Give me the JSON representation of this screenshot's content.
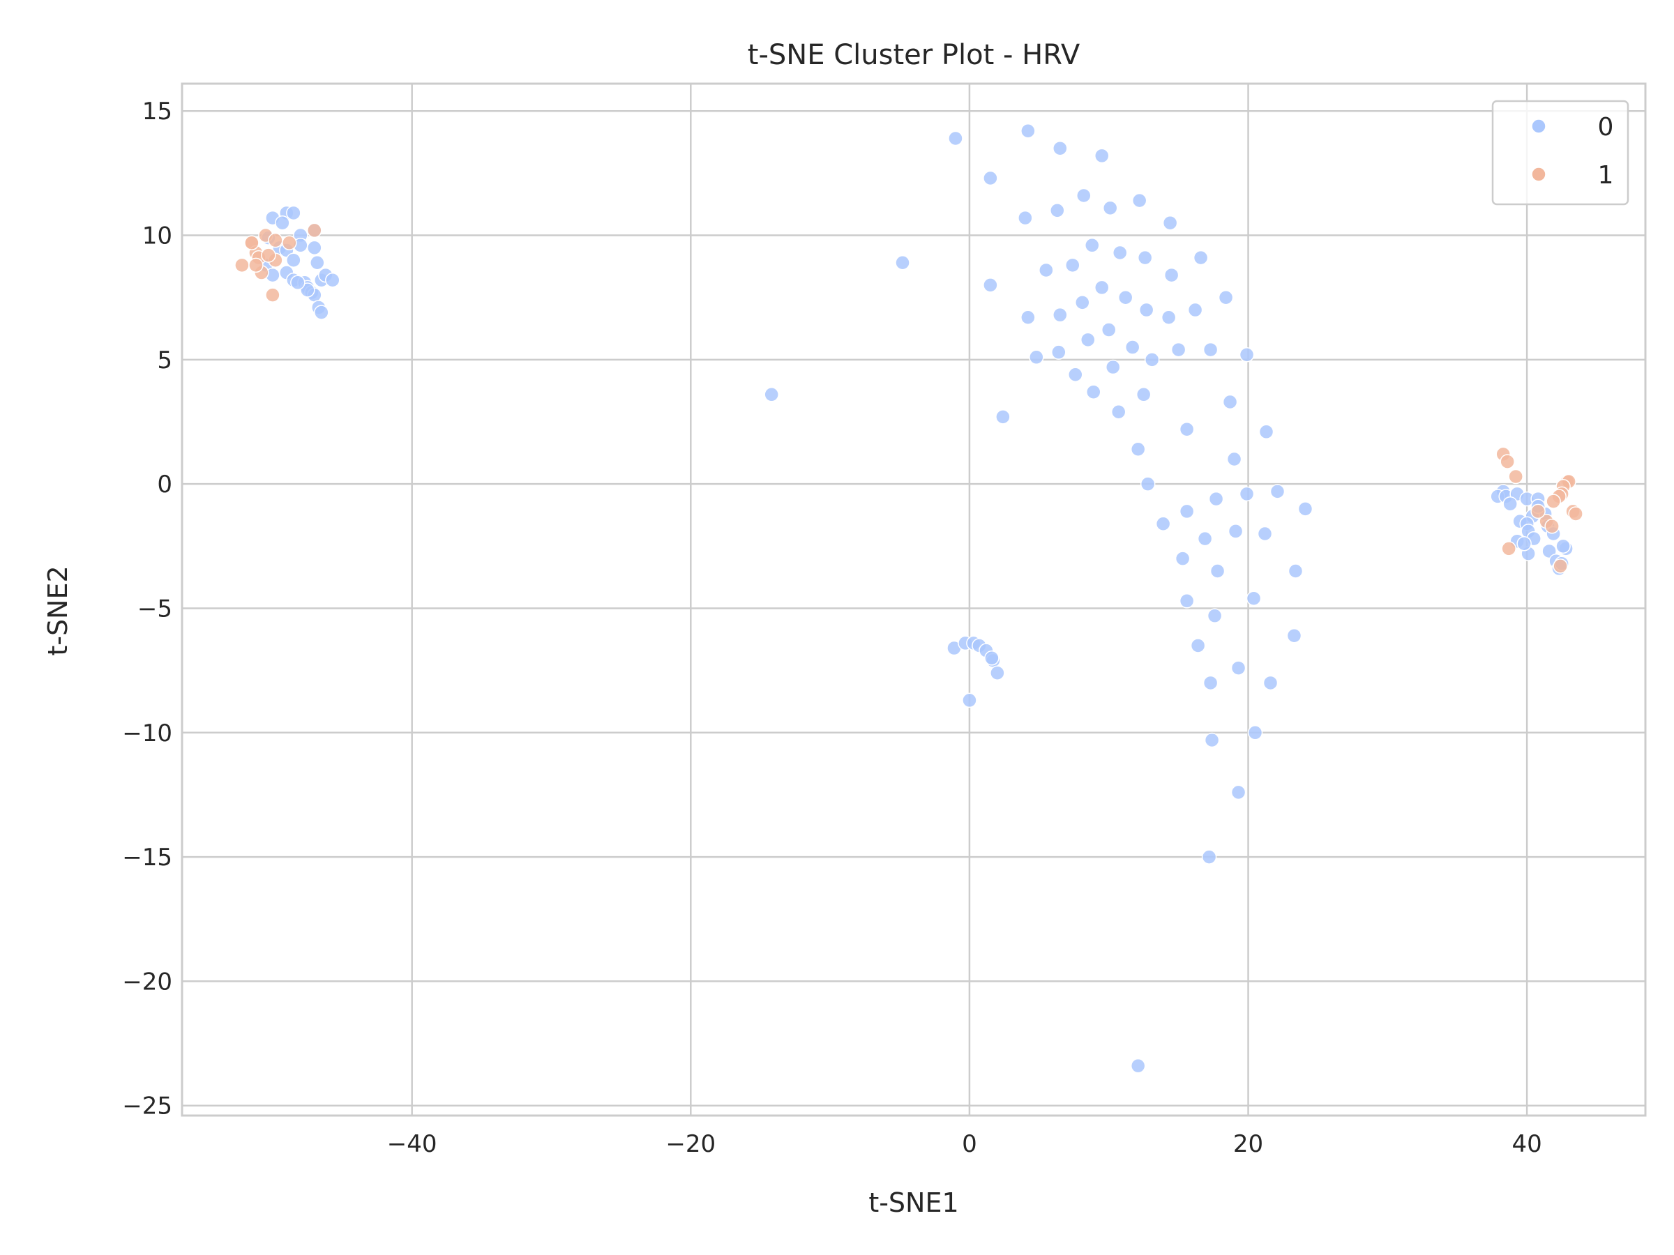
{
  "chart_data": {
    "type": "scatter",
    "title": "t-SNE Cluster Plot - HRV",
    "xlabel": "t-SNE1",
    "ylabel": "t-SNE2",
    "xlim": [
      -56.5,
      48.5
    ],
    "ylim": [
      -25.4,
      16.1
    ],
    "xticks": [
      -40,
      -20,
      0,
      20,
      40
    ],
    "yticks": [
      15,
      10,
      5,
      0,
      -5,
      -10,
      -15,
      -20,
      -25
    ],
    "grid": true,
    "legend_position": "top-right",
    "series": [
      {
        "name": "0",
        "color": "#aac7fd",
        "points": [
          [
            -50,
            10.7
          ],
          [
            -49,
            10.9
          ],
          [
            -48.5,
            10.9
          ],
          [
            -49.3,
            10.5
          ],
          [
            -48,
            10.0
          ],
          [
            -47,
            10.2
          ],
          [
            -48,
            9.6
          ],
          [
            -49.5,
            9.5
          ],
          [
            -50.3,
            9.9
          ],
          [
            -47,
            9.5
          ],
          [
            -46.8,
            8.9
          ],
          [
            -49,
            9.4
          ],
          [
            -48.5,
            9.0
          ],
          [
            -50.5,
            8.8
          ],
          [
            -49,
            8.5
          ],
          [
            -50,
            8.4
          ],
          [
            -48.5,
            8.2
          ],
          [
            -47.7,
            8.1
          ],
          [
            -47.5,
            7.9
          ],
          [
            -46.5,
            8.2
          ],
          [
            -46.2,
            8.4
          ],
          [
            -45.7,
            8.2
          ],
          [
            -47.2,
            7.7
          ],
          [
            -47,
            7.6
          ],
          [
            -46.7,
            7.1
          ],
          [
            -46.5,
            6.9
          ],
          [
            -47.5,
            7.8
          ],
          [
            -48.2,
            8.1
          ],
          [
            -14.2,
            3.6
          ],
          [
            -4.8,
            8.9
          ],
          [
            -1,
            13.9
          ],
          [
            1.5,
            12.3
          ],
          [
            4.2,
            14.2
          ],
          [
            6.5,
            13.5
          ],
          [
            9.5,
            13.2
          ],
          [
            4,
            10.7
          ],
          [
            6.3,
            11.0
          ],
          [
            8.2,
            11.6
          ],
          [
            10.1,
            11.1
          ],
          [
            12.2,
            11.4
          ],
          [
            14.4,
            10.5
          ],
          [
            8.8,
            9.6
          ],
          [
            10.8,
            9.3
          ],
          [
            12.6,
            9.1
          ],
          [
            16.6,
            9.1
          ],
          [
            5.5,
            8.6
          ],
          [
            7.4,
            8.8
          ],
          [
            14.5,
            8.4
          ],
          [
            1.5,
            8.0
          ],
          [
            9.5,
            7.9
          ],
          [
            11.2,
            7.5
          ],
          [
            18.4,
            7.5
          ],
          [
            8.1,
            7.3
          ],
          [
            12.7,
            7.0
          ],
          [
            16.2,
            7.0
          ],
          [
            4.2,
            6.7
          ],
          [
            6.5,
            6.8
          ],
          [
            14.3,
            6.7
          ],
          [
            10,
            6.2
          ],
          [
            8.5,
            5.8
          ],
          [
            11.7,
            5.5
          ],
          [
            15,
            5.4
          ],
          [
            17.3,
            5.4
          ],
          [
            4.8,
            5.1
          ],
          [
            6.4,
            5.3
          ],
          [
            13.1,
            5.0
          ],
          [
            19.9,
            5.2
          ],
          [
            10.3,
            4.7
          ],
          [
            7.6,
            4.4
          ],
          [
            8.9,
            3.7
          ],
          [
            12.5,
            3.6
          ],
          [
            18.7,
            3.3
          ],
          [
            2.4,
            2.7
          ],
          [
            10.7,
            2.9
          ],
          [
            15.6,
            2.2
          ],
          [
            21.3,
            2.1
          ],
          [
            12.1,
            1.4
          ],
          [
            19,
            1.0
          ],
          [
            12.8,
            0.0
          ],
          [
            19.9,
            -0.4
          ],
          [
            22.1,
            -0.3
          ],
          [
            17.7,
            -0.6
          ],
          [
            24.1,
            -1.0
          ],
          [
            15.6,
            -1.1
          ],
          [
            13.9,
            -1.6
          ],
          [
            16.9,
            -2.2
          ],
          [
            19.1,
            -1.9
          ],
          [
            21.2,
            -2.0
          ],
          [
            15.3,
            -3.0
          ],
          [
            17.8,
            -3.5
          ],
          [
            23.4,
            -3.5
          ],
          [
            15.6,
            -4.7
          ],
          [
            20.4,
            -4.6
          ],
          [
            17.6,
            -5.3
          ],
          [
            23.3,
            -6.1
          ],
          [
            16.4,
            -6.5
          ],
          [
            19.3,
            -7.4
          ],
          [
            17.3,
            -8.0
          ],
          [
            21.6,
            -8.0
          ],
          [
            20.5,
            -10.0
          ],
          [
            17.4,
            -10.3
          ],
          [
            19.3,
            -12.4
          ],
          [
            17.2,
            -15.0
          ],
          [
            12.1,
            -23.4
          ],
          [
            -1.1,
            -6.6
          ],
          [
            -0.3,
            -6.4
          ],
          [
            0.3,
            -6.4
          ],
          [
            0.7,
            -6.5
          ],
          [
            1.2,
            -6.7
          ],
          [
            1.7,
            -7.1
          ],
          [
            2,
            -7.6
          ],
          [
            0,
            -8.7
          ],
          [
            1.6,
            -7.0
          ],
          [
            38.3,
            -0.3
          ],
          [
            37.9,
            -0.5
          ],
          [
            38.5,
            -0.5
          ],
          [
            39.3,
            -0.4
          ],
          [
            40,
            -0.6
          ],
          [
            40.8,
            -0.6
          ],
          [
            41.3,
            -1.2
          ],
          [
            38.8,
            -0.8
          ],
          [
            40.4,
            -1.3
          ],
          [
            39.5,
            -1.5
          ],
          [
            40,
            -1.6
          ],
          [
            41.5,
            -1.7
          ],
          [
            40.1,
            -1.9
          ],
          [
            40.8,
            -0.9
          ],
          [
            41.9,
            -2.0
          ],
          [
            39.3,
            -2.3
          ],
          [
            40.5,
            -2.2
          ],
          [
            41.6,
            -2.7
          ],
          [
            42.8,
            -2.6
          ],
          [
            40.1,
            -2.8
          ],
          [
            42.1,
            -3.1
          ],
          [
            42.3,
            -3.4
          ],
          [
            42.5,
            -3.2
          ],
          [
            39.8,
            -2.4
          ],
          [
            42.6,
            -2.5
          ]
        ]
      },
      {
        "name": "1",
        "color": "#f2b79c",
        "points": [
          [
            -52.2,
            8.8
          ],
          [
            -51.5,
            9.7
          ],
          [
            -51.2,
            9.3
          ],
          [
            -50.5,
            10.0
          ],
          [
            -51,
            9.1
          ],
          [
            -50.8,
            8.5
          ],
          [
            -51.2,
            8.8
          ],
          [
            -50,
            7.6
          ],
          [
            -49.8,
            9.0
          ],
          [
            -48.8,
            9.7
          ],
          [
            -50.3,
            9.2
          ],
          [
            -47,
            10.2
          ],
          [
            -49.8,
            9.8
          ],
          [
            -51.5,
            9.7
          ],
          [
            38.3,
            1.2
          ],
          [
            38.6,
            0.9
          ],
          [
            39.2,
            0.3
          ],
          [
            38.7,
            -2.6
          ],
          [
            42.9,
            0.1
          ],
          [
            43,
            0.1
          ],
          [
            42.6,
            -0.1
          ],
          [
            42.5,
            -0.4
          ],
          [
            42.3,
            -0.5
          ],
          [
            41.9,
            -0.7
          ],
          [
            43.3,
            -1.1
          ],
          [
            43.5,
            -1.2
          ],
          [
            41.4,
            -1.5
          ],
          [
            41.8,
            -1.7
          ],
          [
            40.8,
            -1.1
          ],
          [
            42.4,
            -3.3
          ]
        ]
      }
    ]
  }
}
